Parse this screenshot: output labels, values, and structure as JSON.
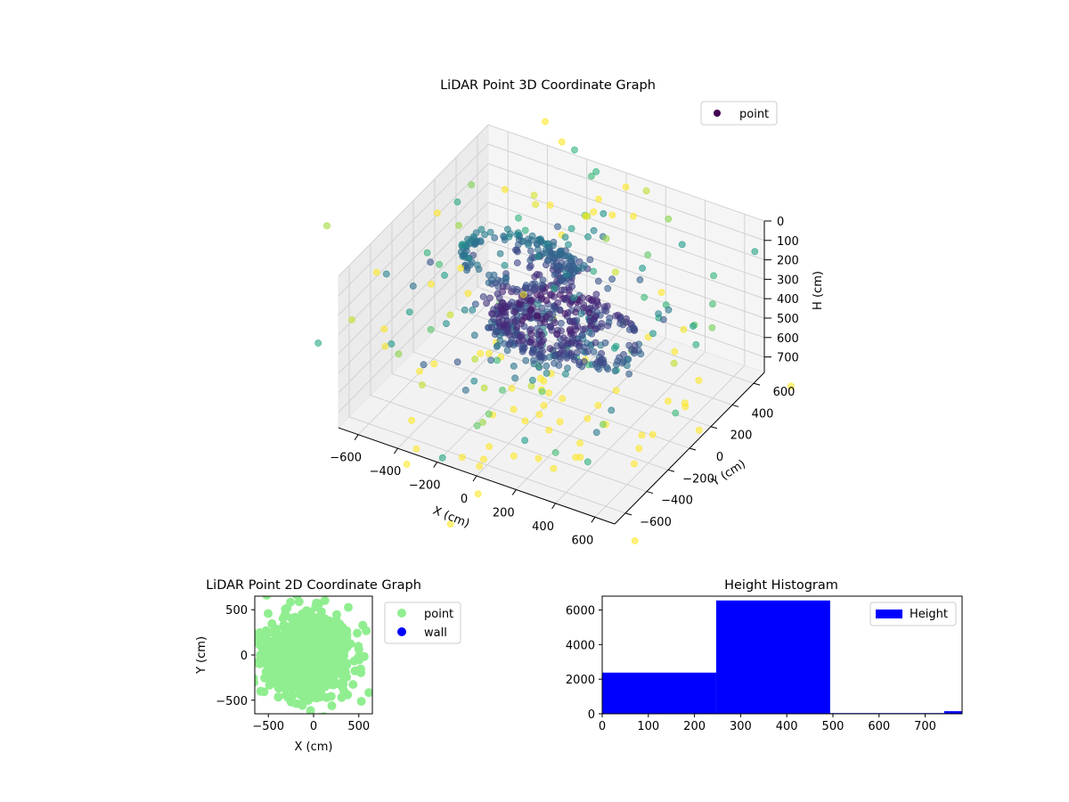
{
  "figure": {
    "background": "#ffffff"
  },
  "chart_data": [
    {
      "type": "scatter",
      "projection": "3d",
      "title": "LiDAR Point 3D Coordinate Graph",
      "xlabel": "X (cm)",
      "ylabel": "Y (cm)",
      "zlabel": "H (cm)",
      "xlim": [
        -700,
        700
      ],
      "ylim": [
        -700,
        700
      ],
      "zlim": [
        0,
        780
      ],
      "z_inverted": true,
      "xticks": [
        -600,
        -400,
        -200,
        0,
        200,
        400,
        600
      ],
      "yticks": [
        -600,
        -400,
        -200,
        0,
        200,
        400,
        600
      ],
      "zticks": [
        0,
        100,
        200,
        300,
        400,
        500,
        600,
        700
      ],
      "legend": {
        "entries": [
          "point"
        ],
        "position": "top-right"
      },
      "colormap": "viridis",
      "grid": true,
      "series": [
        {
          "name": "point",
          "color_by": "height",
          "clusters": [
            {
              "shape": "ring",
              "cx": -250,
              "cy": 150,
              "r": 260,
              "h": 240,
              "spread": 22,
              "count": 130
            },
            {
              "shape": "disk",
              "cx": 0,
              "cy": -50,
              "r": 280,
              "h": 380,
              "spread": 40,
              "count": 260
            },
            {
              "shape": "ring",
              "cx": 120,
              "cy": -40,
              "r": 320,
              "h": 360,
              "spread": 30,
              "count": 160
            },
            {
              "shape": "blob",
              "cx": -150,
              "cy": 250,
              "r": 150,
              "h": 260,
              "spread": 40,
              "count": 80
            },
            {
              "shape": "scatter",
              "cx": 0,
              "cy": 0,
              "r": 800,
              "h": 450,
              "spread": 300,
              "count": 220
            }
          ]
        }
      ]
    },
    {
      "type": "scatter",
      "title": "LiDAR Point 2D Coordinate Graph",
      "xlabel": "X (cm)",
      "ylabel": "Y (cm)",
      "xlim": [
        -650,
        650
      ],
      "ylim": [
        -650,
        650
      ],
      "xticks": [
        -500,
        0,
        500
      ],
      "yticks": [
        -500,
        0,
        500
      ],
      "legend": {
        "position": "outside-right"
      },
      "grid": false,
      "series": [
        {
          "name": "point",
          "color": "#90ee90",
          "cx": -50,
          "cy": 0,
          "spread": 230,
          "count": 900
        },
        {
          "name": "wall",
          "color": "#0000ff",
          "count": 0
        }
      ]
    },
    {
      "type": "bar",
      "subtype": "histogram",
      "title": "Height Histogram",
      "xlim": [
        0,
        780
      ],
      "ylim": [
        0,
        6800
      ],
      "xticks": [
        0,
        100,
        200,
        300,
        400,
        500,
        600,
        700
      ],
      "yticks": [
        0,
        2000,
        4000,
        6000
      ],
      "legend": {
        "entries": [
          "Height"
        ],
        "position": "top-right"
      },
      "grid": false,
      "series": [
        {
          "name": "Height",
          "color": "#0000ff",
          "bins": [
            {
              "start": 0,
              "end": 247,
              "value": 2380
            },
            {
              "start": 247,
              "end": 494,
              "value": 6550
            },
            {
              "start": 494,
              "end": 741,
              "value": 40
            },
            {
              "start": 741,
              "end": 988,
              "value": 150
            }
          ]
        }
      ]
    }
  ]
}
